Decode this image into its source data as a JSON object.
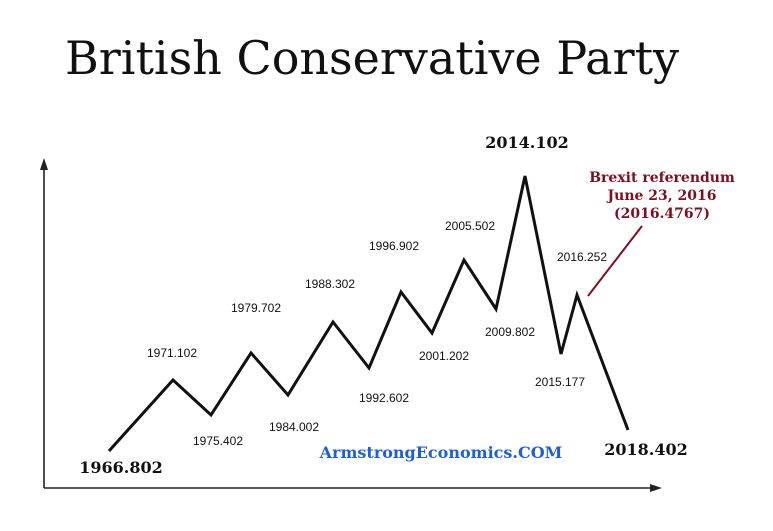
{
  "chart_data": {
    "type": "line",
    "title": "British Conservative Party",
    "points": [
      {
        "x": "1966.802",
        "label": "1966.802",
        "kind": "low"
      },
      {
        "x": "1971.102",
        "label": "1971.102",
        "kind": "high"
      },
      {
        "x": "1975.402",
        "label": "1975.402",
        "kind": "low"
      },
      {
        "x": "1979.702",
        "label": "1979.702",
        "kind": "high"
      },
      {
        "x": "1984.002",
        "label": "1984.002",
        "kind": "low"
      },
      {
        "x": "1988.302",
        "label": "1988.302",
        "kind": "high"
      },
      {
        "x": "1992.602",
        "label": "1992.602",
        "kind": "low"
      },
      {
        "x": "1996.902",
        "label": "1996.902",
        "kind": "high"
      },
      {
        "x": "2001.202",
        "label": "2001.202",
        "kind": "low"
      },
      {
        "x": "2005.502",
        "label": "2005.502",
        "kind": "high"
      },
      {
        "x": "2009.802",
        "label": "2009.802",
        "kind": "low"
      },
      {
        "x": "2014.102",
        "label": "2014.102",
        "kind": "high"
      },
      {
        "x": "2015.177",
        "label": "2015.177",
        "kind": "low"
      },
      {
        "x": "2016.252",
        "label": "2016.252",
        "kind": "high"
      },
      {
        "x": "2018.402",
        "label": "2018.402",
        "kind": "low"
      }
    ],
    "annotation": {
      "lines": [
        "Brexit referendum",
        "June 23, 2016",
        "(2016.4767)"
      ],
      "color": "#7a1020"
    },
    "watermark": "ArmstrongEconomics.COM",
    "watermark_color": "#1f5fd6",
    "grid": false
  }
}
